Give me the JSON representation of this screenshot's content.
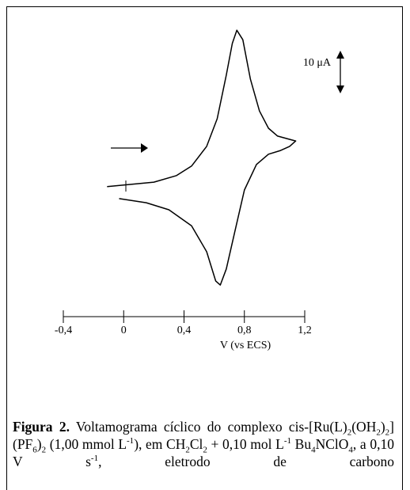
{
  "chart_data": {
    "type": "line",
    "x": [
      -0.11,
      0.0,
      0.2,
      0.35,
      0.45,
      0.55,
      0.62,
      0.68,
      0.72,
      0.75,
      0.79,
      0.84,
      0.9,
      0.96,
      1.02,
      1.08,
      1.14,
      1.1,
      1.04,
      0.96,
      0.88,
      0.8,
      0.74,
      0.68,
      0.64,
      0.61,
      0.55,
      0.45,
      0.3,
      0.15,
      -0.03
    ],
    "values": [
      0.8,
      1.2,
      1.9,
      3.5,
      5.8,
      10.6,
      17.3,
      27.9,
      35.6,
      38.8,
      36.5,
      26.9,
      19.2,
      15.0,
      13.1,
      12.5,
      11.9,
      10.6,
      9.6,
      8.7,
      6.2,
      0,
      -9.6,
      -19.2,
      -23.1,
      -22.1,
      -15.0,
      -8.7,
      -4.8,
      -3.1,
      -2.1
    ],
    "color": "#000000",
    "xlim": [
      -0.4,
      1.2
    ],
    "ylim": [
      -25,
      40
    ],
    "xticks": [
      {
        "value": -0.4,
        "label": "-0,4"
      },
      0,
      {
        "value": 0.4,
        "label": "0,4"
      },
      {
        "value": 0.8,
        "label": "0,8"
      },
      {
        "value": 1.2,
        "label": "1,2"
      }
    ],
    "x_label": "V (vs ECS)",
    "annotation": "10 μA"
  },
  "caption": {
    "label": "Figura 2.",
    "parts": [
      {
        "text": " Voltamograma cíclico do complexo cis-[Ru(L)"
      },
      {
        "text": "2",
        "script": "sub"
      },
      {
        "text": "(OH"
      },
      {
        "text": "2",
        "script": "sub"
      },
      {
        "text": ")"
      },
      {
        "text": "2",
        "script": "sub"
      },
      {
        "text": "](PF"
      },
      {
        "text": "6",
        "script": "sub"
      },
      {
        "text": ")"
      },
      {
        "text": "2",
        "script": "sub"
      },
      {
        "text": " (1,00 mmol L"
      },
      {
        "text": "-1",
        "script": "sup"
      },
      {
        "text": "), em CH"
      },
      {
        "text": "2",
        "script": "sub"
      },
      {
        "text": "Cl"
      },
      {
        "text": "2",
        "script": "sub"
      },
      {
        "text": " + 0,10 mol L"
      },
      {
        "text": "-1",
        "script": "sup"
      },
      {
        "text": " Bu"
      },
      {
        "text": "4",
        "script": "sub"
      },
      {
        "text": "NClO"
      },
      {
        "text": "4",
        "script": "sub"
      },
      {
        "text": ", a 0,10 V s"
      },
      {
        "text": "-1",
        "script": "sup"
      },
      {
        "text": ", eletrodo de carbono"
      }
    ]
  }
}
